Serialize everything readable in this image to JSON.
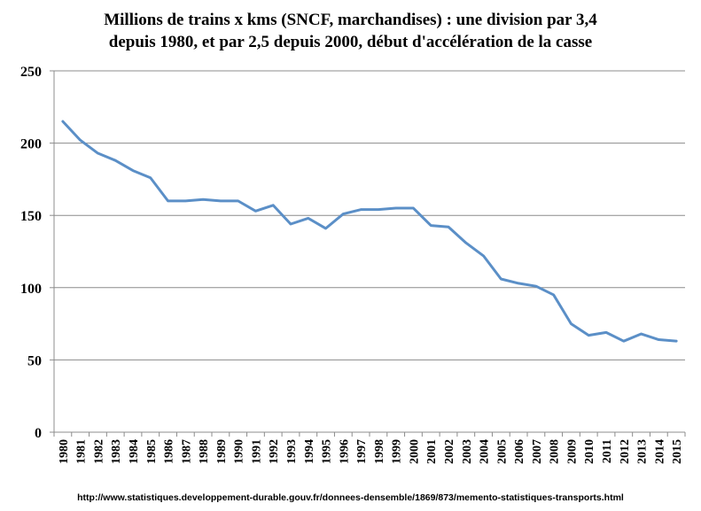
{
  "chart_data": {
    "type": "line",
    "title_lines": [
      "Millions de trains x kms (SNCF, marchandises) : une division par 3,4",
      "depuis 1980, et par 2,5 depuis 2000, début d'accélération de la casse"
    ],
    "xlabel": "",
    "ylabel": "",
    "ylim": [
      0,
      250
    ],
    "yticks": [
      0,
      50,
      100,
      150,
      200,
      250
    ],
    "grid": true,
    "legend": "none",
    "line_color": "#5b8fc7",
    "x": [
      "1980",
      "1981",
      "1982",
      "1983",
      "1984",
      "1985",
      "1986",
      "1987",
      "1988",
      "1989",
      "1990",
      "1991",
      "1992",
      "1993",
      "1994",
      "1995",
      "1996",
      "1997",
      "1998",
      "1999",
      "2000",
      "2001",
      "2002",
      "2003",
      "2004",
      "2005",
      "2006",
      "2007",
      "2008",
      "2009",
      "2010",
      "2011",
      "2012",
      "2013",
      "2014",
      "2015"
    ],
    "values": [
      215,
      202,
      193,
      188,
      181,
      176,
      160,
      160,
      161,
      160,
      160,
      153,
      157,
      144,
      148,
      141,
      151,
      154,
      154,
      155,
      155,
      143,
      142,
      131,
      122,
      106,
      103,
      101,
      95,
      75,
      67,
      69,
      63,
      68,
      64,
      63
    ]
  },
  "source": "http://www.statistiques.developpement-durable.gouv.fr/donnees-densemble/1869/873/memento-statistiques-transports.html"
}
